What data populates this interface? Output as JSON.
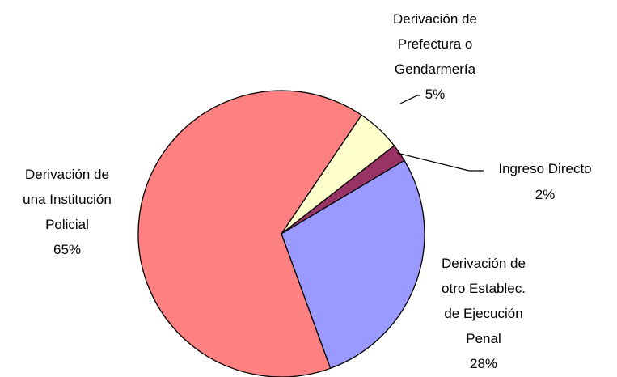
{
  "chart_data": {
    "type": "pie",
    "categories": [
      "Derivación de\nPrefectura o\nGendarmería",
      "Ingreso Directo",
      "Derivación de\notro Establec.\nde Ejecución\nPenal",
      "Derivación de\nuna Institución\nPolicial"
    ],
    "values": [
      5,
      2,
      28,
      65
    ],
    "value_labels": [
      "5%",
      "2%",
      "28%",
      "65%"
    ],
    "colors": [
      "#ffffcc",
      "#993366",
      "#9999ff",
      "#ff8080"
    ]
  }
}
